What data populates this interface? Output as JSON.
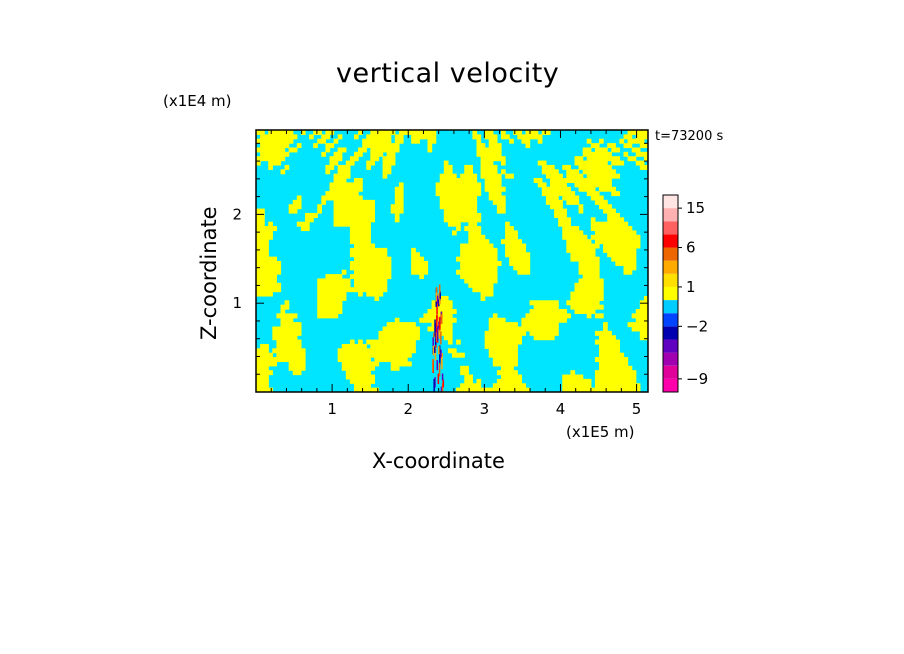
{
  "chart_data": {
    "type": "heatmap",
    "title": "vertical velocity",
    "xlabel": "X-coordinate",
    "ylabel": "Z-coordinate",
    "x_unit": "(x1E5 m)",
    "z_unit": "(x1E4 m)",
    "time_label": "t=73200 s",
    "xlim": [
      0,
      5.15
    ],
    "ylim": [
      0,
      2.95
    ],
    "x_ticks": [
      {
        "value": 1,
        "label": "1"
      },
      {
        "value": 2,
        "label": "2"
      },
      {
        "value": 3,
        "label": "3"
      },
      {
        "value": 4,
        "label": "4"
      },
      {
        "value": 5,
        "label": "5"
      }
    ],
    "z_ticks": [
      {
        "value": 1,
        "label": "1"
      },
      {
        "value": 2,
        "label": "2"
      }
    ],
    "colorbar": {
      "levels": [
        -12,
        -9,
        -6,
        -4,
        -3,
        -2,
        -1,
        0,
        1,
        2,
        3,
        6,
        9,
        12,
        15,
        20
      ],
      "colors": [
        "#ff00aa",
        "#e0009a",
        "#a000b0",
        "#6000c0",
        "#0000b0",
        "#0044ff",
        "#00ccff",
        "#ffff00",
        "#ffe000",
        "#ffaa00",
        "#ee6600",
        "#ff0000",
        "#ff6060",
        "#ffb0b0",
        "#ffe4e4"
      ],
      "labels": [
        {
          "value": -9,
          "label": "−9"
        },
        {
          "value": -2,
          "label": "−2"
        },
        {
          "value": 1,
          "label": "1"
        },
        {
          "value": 6,
          "label": "6"
        },
        {
          "value": 15,
          "label": "15"
        }
      ]
    },
    "field_description_colors": {
      "updraft": "#ffff00",
      "downdraft": "#00e5ff"
    }
  }
}
